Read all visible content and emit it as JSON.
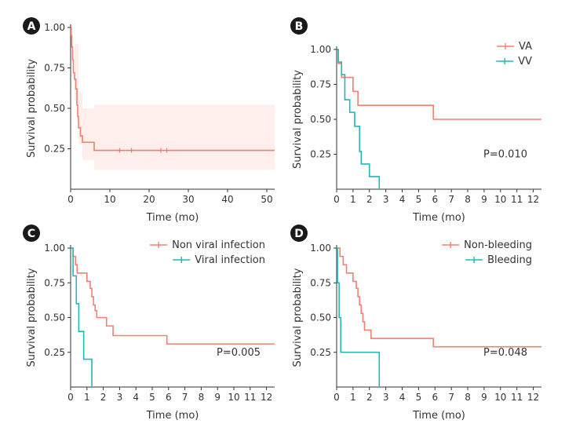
{
  "chart_data": [
    {
      "panel": "A",
      "type": "line",
      "xlabel": "Time (mo)",
      "ylabel": "Survival probability",
      "xlim": [
        0,
        52
      ],
      "ylim": [
        0,
        1.0
      ],
      "xticks": [
        0,
        10,
        20,
        30,
        40,
        50
      ],
      "yticks": [
        "0.25",
        "0.50",
        "0.75",
        "1.00"
      ],
      "grid": false,
      "confidence_band": true,
      "series": [
        {
          "color": "#f08070",
          "steps": [
            [
              0,
              1.0
            ],
            [
              0.15,
              0.95
            ],
            [
              0.3,
              0.88
            ],
            [
              0.5,
              0.8
            ],
            [
              0.7,
              0.72
            ],
            [
              1.0,
              0.68
            ],
            [
              1.3,
              0.62
            ],
            [
              1.6,
              0.52
            ],
            [
              1.8,
              0.45
            ],
            [
              2.0,
              0.38
            ],
            [
              2.5,
              0.33
            ],
            [
              3.0,
              0.29
            ],
            [
              6.0,
              0.24
            ],
            [
              52,
              0.24
            ]
          ],
          "band": [
            [
              0,
              1.0,
              1.0
            ],
            [
              1.0,
              0.55,
              0.9
            ],
            [
              2.0,
              0.28,
              0.6
            ],
            [
              3.0,
              0.18,
              0.5
            ],
            [
              6.0,
              0.12,
              0.52
            ],
            [
              52,
              0.12,
              0.52
            ]
          ],
          "censored": [
            12.5,
            15.5,
            23,
            24.5
          ]
        }
      ]
    },
    {
      "panel": "B",
      "type": "line",
      "xlabel": "Time (mo)",
      "ylabel": "Survival probability",
      "xlim": [
        0,
        12.5
      ],
      "ylim": [
        0,
        1.0
      ],
      "xticks": [
        0,
        1,
        2,
        3,
        4,
        5,
        6,
        7,
        8,
        9,
        10,
        11,
        12
      ],
      "yticks": [
        "0.25",
        "0.50",
        "0.75",
        "1.00"
      ],
      "legend": "top-right",
      "annotation": "P=0.010",
      "series": [
        {
          "name": "VA",
          "color": "#f08070",
          "steps": [
            [
              0,
              1.0
            ],
            [
              0.1,
              0.9
            ],
            [
              0.3,
              0.8
            ],
            [
              1.0,
              0.7
            ],
            [
              1.3,
              0.6
            ],
            [
              5.9,
              0.5
            ],
            [
              12.5,
              0.5
            ]
          ]
        },
        {
          "name": "VV",
          "color": "#20b8b8",
          "steps": [
            [
              0,
              1.0
            ],
            [
              0.1,
              0.91
            ],
            [
              0.3,
              0.82
            ],
            [
              0.5,
              0.64
            ],
            [
              0.8,
              0.55
            ],
            [
              1.1,
              0.45
            ],
            [
              1.4,
              0.27
            ],
            [
              1.5,
              0.18
            ],
            [
              2.0,
              0.09
            ],
            [
              2.6,
              0.0
            ]
          ]
        }
      ]
    },
    {
      "panel": "C",
      "type": "line",
      "xlabel": "Time (mo)",
      "ylabel": "Survival probability",
      "xlim": [
        0,
        12.5
      ],
      "ylim": [
        0,
        1.0
      ],
      "xticks": [
        0,
        1,
        2,
        3,
        4,
        5,
        6,
        7,
        8,
        9,
        10,
        11,
        12
      ],
      "yticks": [
        "0.25",
        "0.50",
        "0.75",
        "1.00"
      ],
      "legend": "top-right",
      "annotation": "P=0.005",
      "series": [
        {
          "name": "Non viral infection",
          "color": "#f08070",
          "steps": [
            [
              0,
              1.0
            ],
            [
              0.15,
              0.94
            ],
            [
              0.3,
              0.88
            ],
            [
              0.4,
              0.82
            ],
            [
              1.0,
              0.76
            ],
            [
              1.2,
              0.71
            ],
            [
              1.3,
              0.65
            ],
            [
              1.4,
              0.59
            ],
            [
              1.5,
              0.55
            ],
            [
              1.6,
              0.5
            ],
            [
              2.2,
              0.44
            ],
            [
              2.6,
              0.37
            ],
            [
              5.9,
              0.31
            ],
            [
              12.5,
              0.31
            ]
          ]
        },
        {
          "name": "Viral infection",
          "color": "#20b8b8",
          "steps": [
            [
              0,
              1.0
            ],
            [
              0.15,
              0.8
            ],
            [
              0.35,
              0.6
            ],
            [
              0.5,
              0.4
            ],
            [
              0.8,
              0.2
            ],
            [
              1.3,
              0.0
            ]
          ]
        }
      ]
    },
    {
      "panel": "D",
      "type": "line",
      "xlabel": "Time (mo)",
      "ylabel": "Survival probability",
      "xlim": [
        0,
        12.5
      ],
      "ylim": [
        0,
        1.0
      ],
      "xticks": [
        0,
        1,
        2,
        3,
        4,
        5,
        6,
        7,
        8,
        9,
        10,
        11,
        12
      ],
      "yticks": [
        "0.25",
        "0.50",
        "0.75",
        "1.00"
      ],
      "legend": "top-right",
      "annotation": "P=0.048",
      "series": [
        {
          "name": "Non-bleeding",
          "color": "#f08070",
          "steps": [
            [
              0,
              1.0
            ],
            [
              0.2,
              0.94
            ],
            [
              0.4,
              0.88
            ],
            [
              0.6,
              0.82
            ],
            [
              1.0,
              0.76
            ],
            [
              1.2,
              0.71
            ],
            [
              1.3,
              0.65
            ],
            [
              1.4,
              0.59
            ],
            [
              1.5,
              0.53
            ],
            [
              1.6,
              0.47
            ],
            [
              1.7,
              0.41
            ],
            [
              2.1,
              0.35
            ],
            [
              5.9,
              0.29
            ],
            [
              12.5,
              0.29
            ]
          ]
        },
        {
          "name": "Bleeding",
          "color": "#20b8b8",
          "steps": [
            [
              0,
              1.0
            ],
            [
              0.05,
              0.75
            ],
            [
              0.15,
              0.5
            ],
            [
              0.25,
              0.25
            ],
            [
              2.6,
              0.0
            ]
          ]
        }
      ]
    }
  ]
}
